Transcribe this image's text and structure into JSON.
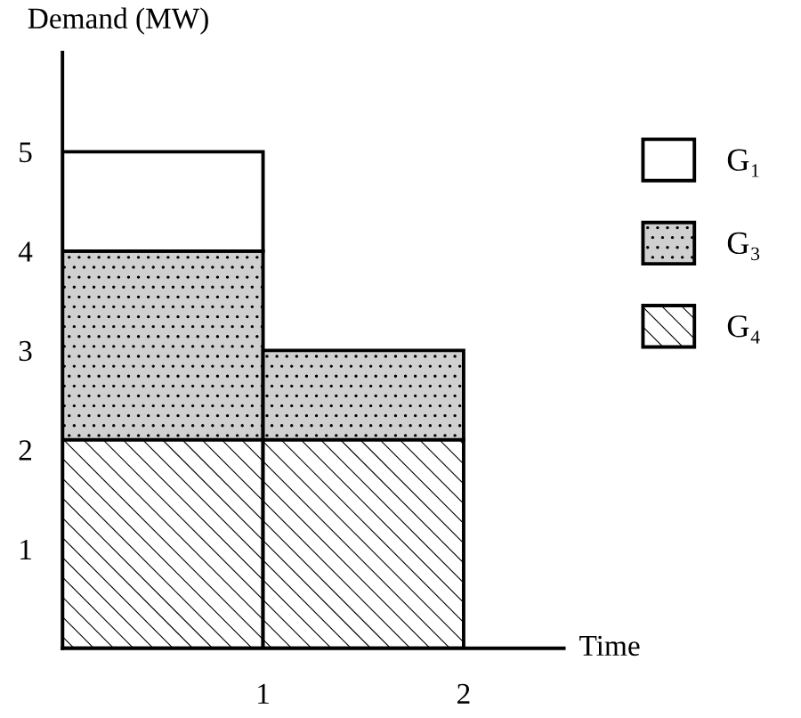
{
  "chart_data": {
    "type": "bar",
    "stacked": true,
    "xlabel": "Time",
    "ylabel": "Demand (MW)",
    "x": [
      0.5,
      1.5
    ],
    "series": [
      {
        "name": "G₄",
        "color": "#ffffff",
        "values": [
          2.1,
          2.1
        ]
      },
      {
        "name": "G₃",
        "color": "#d0d0d0",
        "values": [
          1.9,
          0.9
        ]
      },
      {
        "name": "G₁",
        "color": "#ffffff",
        "values": [
          1,
          null
        ]
      }
    ],
    "xlim": [
      0,
      2.5
    ],
    "xticks": [
      1,
      2
    ],
    "ylim": [
      0,
      6
    ],
    "yticks": [
      1,
      2,
      3,
      4,
      5
    ],
    "grid": false,
    "legend": "right"
  }
}
